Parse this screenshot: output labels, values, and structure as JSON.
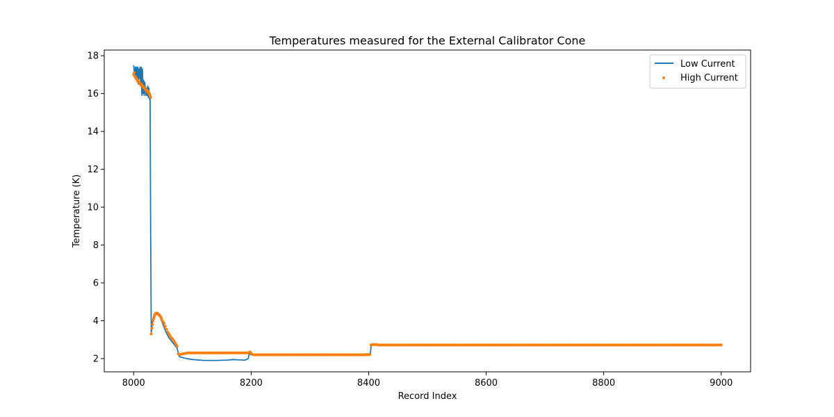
{
  "chart_data": {
    "type": "line",
    "title": "Temperatures measured for the External Calibrator Cone",
    "xlabel": "Record Index",
    "ylabel": "Temperature (K)",
    "xlim": [
      7950,
      9050
    ],
    "ylim": [
      1.3,
      18.3
    ],
    "xticks": [
      8000,
      8200,
      8400,
      8600,
      8800,
      9000
    ],
    "yticks": [
      2,
      4,
      6,
      8,
      10,
      12,
      14,
      16,
      18
    ],
    "grid": false,
    "legend": "top-right",
    "colors": {
      "low": "#1f77b4",
      "high": "#ff7f0e"
    },
    "series": [
      {
        "name": "Low Current",
        "kind": "line",
        "x": [
          8000,
          8002,
          8003,
          8004,
          8005,
          8006,
          8007,
          8008,
          8009,
          8010,
          8011,
          8012,
          8013,
          8014,
          8015,
          8016,
          8017,
          8018,
          8019,
          8020,
          8021,
          8022,
          8023,
          8024,
          8025,
          8026,
          8027,
          8028,
          8029,
          8030,
          8031,
          8032,
          8033,
          8035,
          8038,
          8040,
          8045,
          8050,
          8055,
          8060,
          8065,
          8070,
          8074,
          8077,
          8078,
          8090,
          8100,
          8120,
          8140,
          8160,
          8170,
          8180,
          8190,
          8195,
          8197,
          8200,
          8205,
          8250,
          8300,
          8350,
          8400,
          8403,
          8404,
          8405,
          8406,
          8410,
          8500,
          8600,
          8700,
          8800,
          8900,
          9000
        ],
        "y": [
          17.5,
          16.9,
          17.4,
          16.8,
          17.4,
          16.7,
          17.4,
          16.5,
          17.3,
          16.8,
          17.4,
          16.4,
          17.4,
          15.9,
          17.3,
          16.0,
          16.7,
          15.9,
          16.6,
          16.2,
          15.9,
          16.3,
          15.9,
          16.4,
          15.8,
          16.3,
          15.7,
          15.8,
          8.5,
          3.4,
          3.6,
          3.9,
          4.1,
          4.35,
          4.4,
          4.35,
          4.2,
          3.8,
          3.4,
          3.1,
          2.9,
          2.7,
          2.55,
          2.15,
          2.1,
          2.0,
          1.95,
          1.9,
          1.9,
          1.92,
          1.95,
          1.93,
          1.92,
          2.0,
          2.3,
          2.2,
          2.2,
          2.2,
          2.2,
          2.2,
          2.25,
          2.25,
          2.65,
          2.7,
          2.72,
          2.72,
          2.72,
          2.72,
          2.72,
          2.72,
          2.72,
          2.72
        ]
      },
      {
        "name": "High Current",
        "kind": "scatter",
        "x": [
          8000,
          8001,
          8002,
          8003,
          8004,
          8005,
          8006,
          8007,
          8008,
          8009,
          8010,
          8011,
          8012,
          8013,
          8014,
          8015,
          8016,
          8017,
          8018,
          8019,
          8020,
          8021,
          8022,
          8023,
          8024,
          8025,
          8026,
          8027,
          8028,
          8029,
          8030,
          8031,
          8032,
          8033,
          8034,
          8035,
          8036,
          8037,
          8038,
          8039,
          8040,
          8041,
          8042,
          8043,
          8044,
          8045,
          8046,
          8047,
          8048,
          8050,
          8052,
          8054,
          8056,
          8058,
          8060,
          8062,
          8064,
          8066,
          8068,
          8070,
          8072,
          8074,
          8076,
          8078,
          8080,
          8082,
          8084,
          8086,
          8088,
          8090,
          8195,
          8198,
          8200,
          8202,
          8204,
          8206,
          8400,
          8402,
          8404,
          8406,
          8408,
          8410,
          8412,
          8414
        ],
        "y": [
          17.0,
          17.1,
          16.9,
          16.9,
          16.8,
          16.8,
          16.7,
          16.7,
          16.6,
          16.6,
          16.6,
          16.5,
          16.5,
          16.5,
          16.4,
          16.4,
          16.4,
          16.3,
          16.3,
          16.3,
          16.2,
          16.2,
          16.2,
          16.1,
          16.1,
          16.1,
          16.0,
          16.0,
          15.9,
          15.8,
          3.3,
          3.6,
          3.8,
          4.0,
          4.1,
          4.2,
          4.3,
          4.35,
          4.4,
          4.4,
          4.4,
          4.38,
          4.35,
          4.32,
          4.3,
          4.25,
          4.2,
          4.15,
          4.05,
          3.95,
          3.85,
          3.7,
          3.55,
          3.4,
          3.3,
          3.2,
          3.1,
          3.05,
          2.95,
          2.85,
          2.75,
          2.65,
          2.25,
          2.2,
          2.22,
          2.24,
          2.25,
          2.26,
          2.27,
          2.28,
          2.3,
          2.35,
          2.28,
          2.22,
          2.2,
          2.2,
          2.2,
          2.22,
          2.72,
          2.73,
          2.74,
          2.74,
          2.74,
          2.74
        ],
        "runs": [
          {
            "x_start": 8092,
            "x_end": 8194,
            "step": 2,
            "y": 2.3
          },
          {
            "x_start": 8208,
            "x_end": 8398,
            "step": 2,
            "y": 2.2
          },
          {
            "x_start": 8416,
            "x_end": 9000,
            "step": 2,
            "y": 2.72
          }
        ]
      }
    ]
  }
}
